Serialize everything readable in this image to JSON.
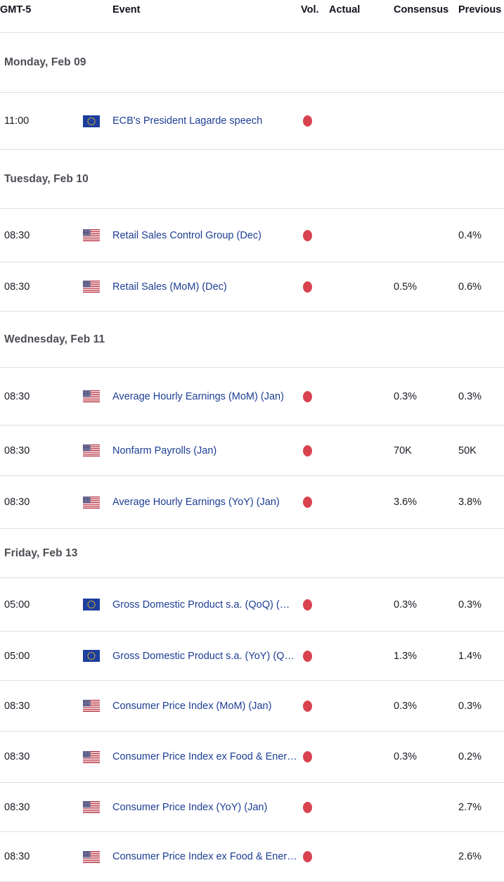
{
  "header": {
    "timezone": "GMT-5",
    "event": "Event",
    "vol": "Vol.",
    "actual": "Actual",
    "consensus": "Consensus",
    "previous": "Previous"
  },
  "colors": {
    "high_volatility_red": "#d9434f",
    "event_link_blue": "#1d3e94",
    "day_header_gray": "#4d4d55",
    "divider_gray": "#e0e0e2",
    "header_text": "#10121c",
    "body_text": "#191b22",
    "us_flag_red": "#b22234",
    "us_flag_canton_blue": "#3c3b6e",
    "eu_flag_blue": "#1c3e9e",
    "eu_flag_star_yellow": "#f5c518"
  },
  "sections": [
    {
      "day": "Monday, Feb 09",
      "events": [
        {
          "time": "11:00",
          "country": "eu",
          "name": "ECB's President Lagarde speech",
          "volatility": "high",
          "actual": "",
          "consensus": "",
          "previous": ""
        }
      ]
    },
    {
      "day": "Tuesday, Feb 10",
      "events": [
        {
          "time": "08:30",
          "country": "us",
          "name": "Retail Sales Control Group (Dec)",
          "volatility": "high",
          "actual": "",
          "consensus": "",
          "previous": "0.4%"
        },
        {
          "time": "08:30",
          "country": "us",
          "name": "Retail Sales (MoM) (Dec)",
          "volatility": "high",
          "actual": "",
          "consensus": "0.5%",
          "previous": "0.6%"
        }
      ]
    },
    {
      "day": "Wednesday, Feb 11",
      "events": [
        {
          "time": "08:30",
          "country": "us",
          "name": "Average Hourly Earnings (MoM) (Jan)",
          "volatility": "high",
          "actual": "",
          "consensus": "0.3%",
          "previous": "0.3%"
        },
        {
          "time": "08:30",
          "country": "us",
          "name": "Nonfarm Payrolls (Jan)",
          "volatility": "high",
          "actual": "",
          "consensus": "70K",
          "previous": "50K"
        },
        {
          "time": "08:30",
          "country": "us",
          "name": "Average Hourly Earnings (YoY) (Jan)",
          "volatility": "high",
          "actual": "",
          "consensus": "3.6%",
          "previous": "3.8%"
        }
      ]
    },
    {
      "day": "Friday, Feb 13",
      "events": [
        {
          "time": "05:00",
          "country": "eu",
          "name": "Gross Domestic Product s.a. (QoQ) (…",
          "volatility": "high",
          "actual": "",
          "consensus": "0.3%",
          "previous": "0.3%"
        },
        {
          "time": "05:00",
          "country": "eu",
          "name": "Gross Domestic Product s.a. (YoY) (Q…",
          "volatility": "high",
          "actual": "",
          "consensus": "1.3%",
          "previous": "1.4%"
        },
        {
          "time": "08:30",
          "country": "us",
          "name": "Consumer Price Index (MoM) (Jan)",
          "volatility": "high",
          "actual": "",
          "consensus": "0.3%",
          "previous": "0.3%"
        },
        {
          "time": "08:30",
          "country": "us",
          "name": "Consumer Price Index ex Food & Ener…",
          "volatility": "high",
          "actual": "",
          "consensus": "0.3%",
          "previous": "0.2%"
        },
        {
          "time": "08:30",
          "country": "us",
          "name": "Consumer Price Index (YoY) (Jan)",
          "volatility": "high",
          "actual": "",
          "consensus": "",
          "previous": "2.7%"
        },
        {
          "time": "08:30",
          "country": "us",
          "name": "Consumer Price Index ex Food & Ener…",
          "volatility": "high",
          "actual": "",
          "consensus": "",
          "previous": "2.6%"
        }
      ]
    }
  ]
}
